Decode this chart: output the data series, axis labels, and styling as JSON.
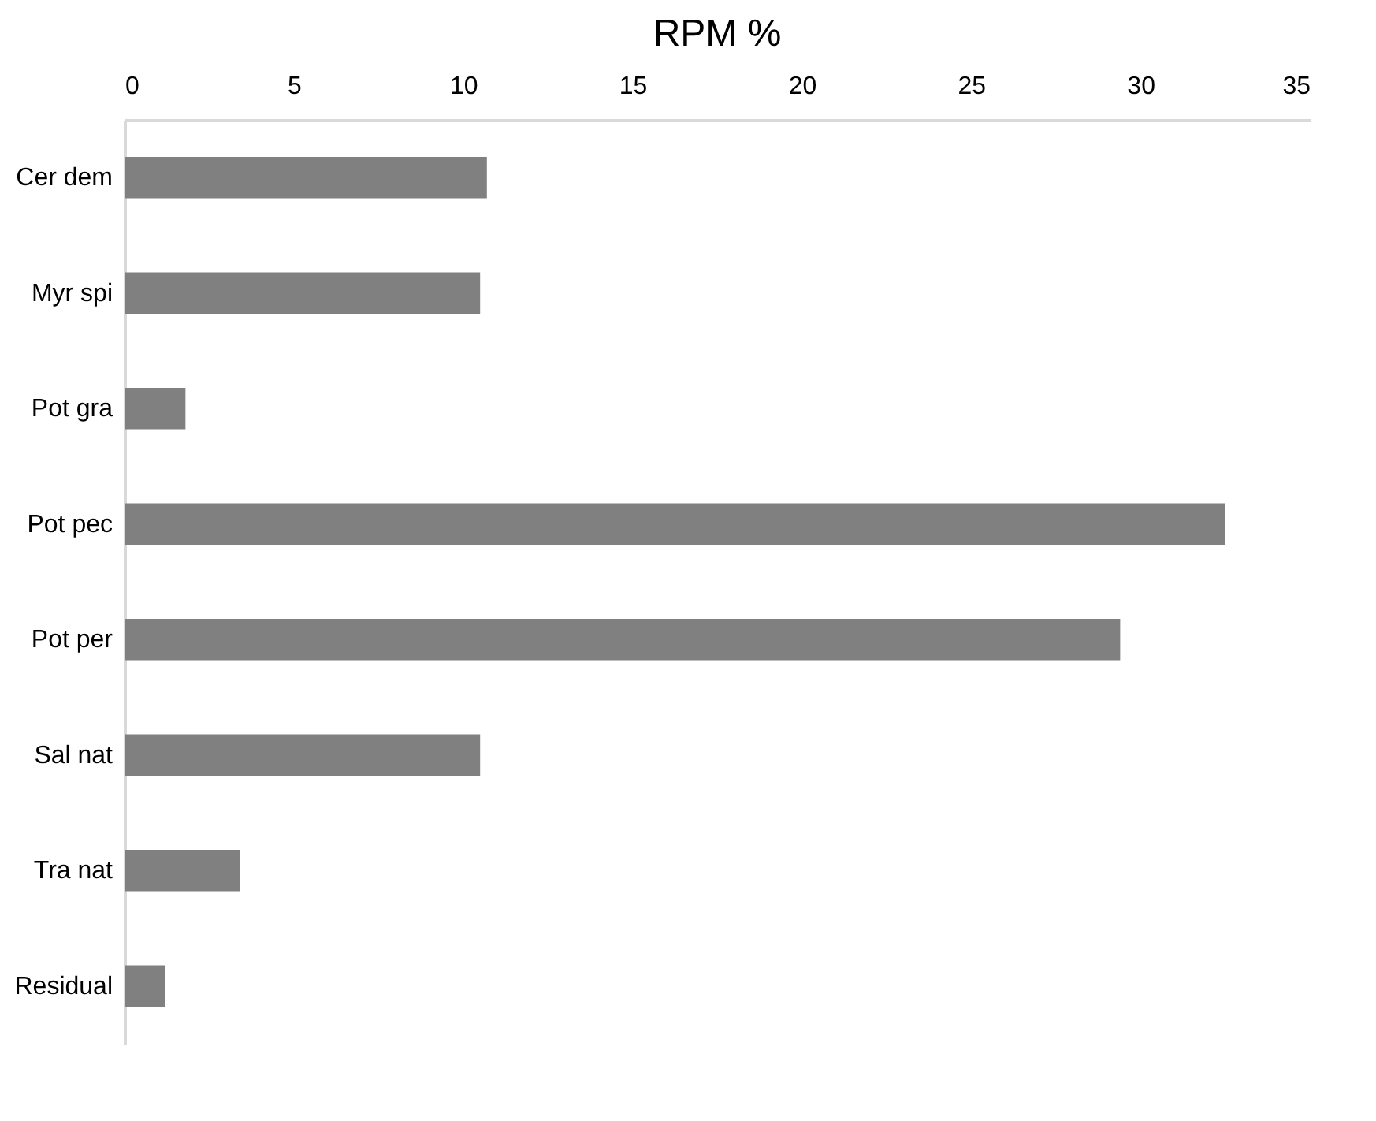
{
  "chart_data": {
    "type": "bar",
    "orientation": "horizontal",
    "title": "RPM %",
    "categories": [
      "Cer dem",
      "Myr spi",
      "Pot gra",
      "Pot pec",
      "Pot per",
      "Sal nat",
      "Tra nat",
      "Residual"
    ],
    "values": [
      10.7,
      10.5,
      1.8,
      32.5,
      29.4,
      10.5,
      3.4,
      1.2
    ],
    "color": "#808080",
    "xlim": [
      0,
      35
    ],
    "xticks": [
      0,
      5,
      10,
      15,
      20,
      25,
      30,
      35
    ],
    "grid": false
  }
}
